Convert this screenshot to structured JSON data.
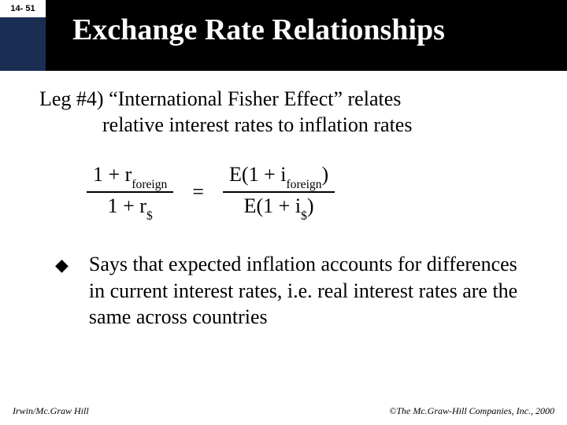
{
  "slide": {
    "number": "14- 51",
    "title": "Exchange Rate Relationships",
    "colors": {
      "header_bg": "#000000",
      "corner_bg": "#1a2d52",
      "title_color": "#ffffff",
      "text_color": "#000000",
      "page_bg": "#ffffff"
    },
    "typography": {
      "title_fontsize": 38,
      "body_fontsize": 26,
      "footer_fontsize": 12,
      "slide_number_fontsize": 11,
      "font_family": "Times New Roman"
    }
  },
  "content": {
    "leg_line1": "Leg #4) “International Fisher Effect” relates",
    "leg_line2": "relative interest rates to inflation rates",
    "formula": {
      "left_num": "1  +  r",
      "left_num_sub": "foreign",
      "left_den": "1  +  r",
      "left_den_sub": "$",
      "equals": "=",
      "right_num_a": "E(1 + i",
      "right_num_sub": "foreign",
      "right_num_b": ")",
      "right_den_a": "E(1 + i",
      "right_den_sub": "$",
      "right_den_b": ")"
    },
    "bullet_symbol": "◆",
    "bullet_text": "Says that expected inflation accounts for differences in current interest rates, i.e. real interest rates are the same across countries"
  },
  "footer": {
    "left": "Irwin/Mc.Graw Hill",
    "right": "©The Mc.Graw-Hill Companies, Inc., 2000"
  }
}
